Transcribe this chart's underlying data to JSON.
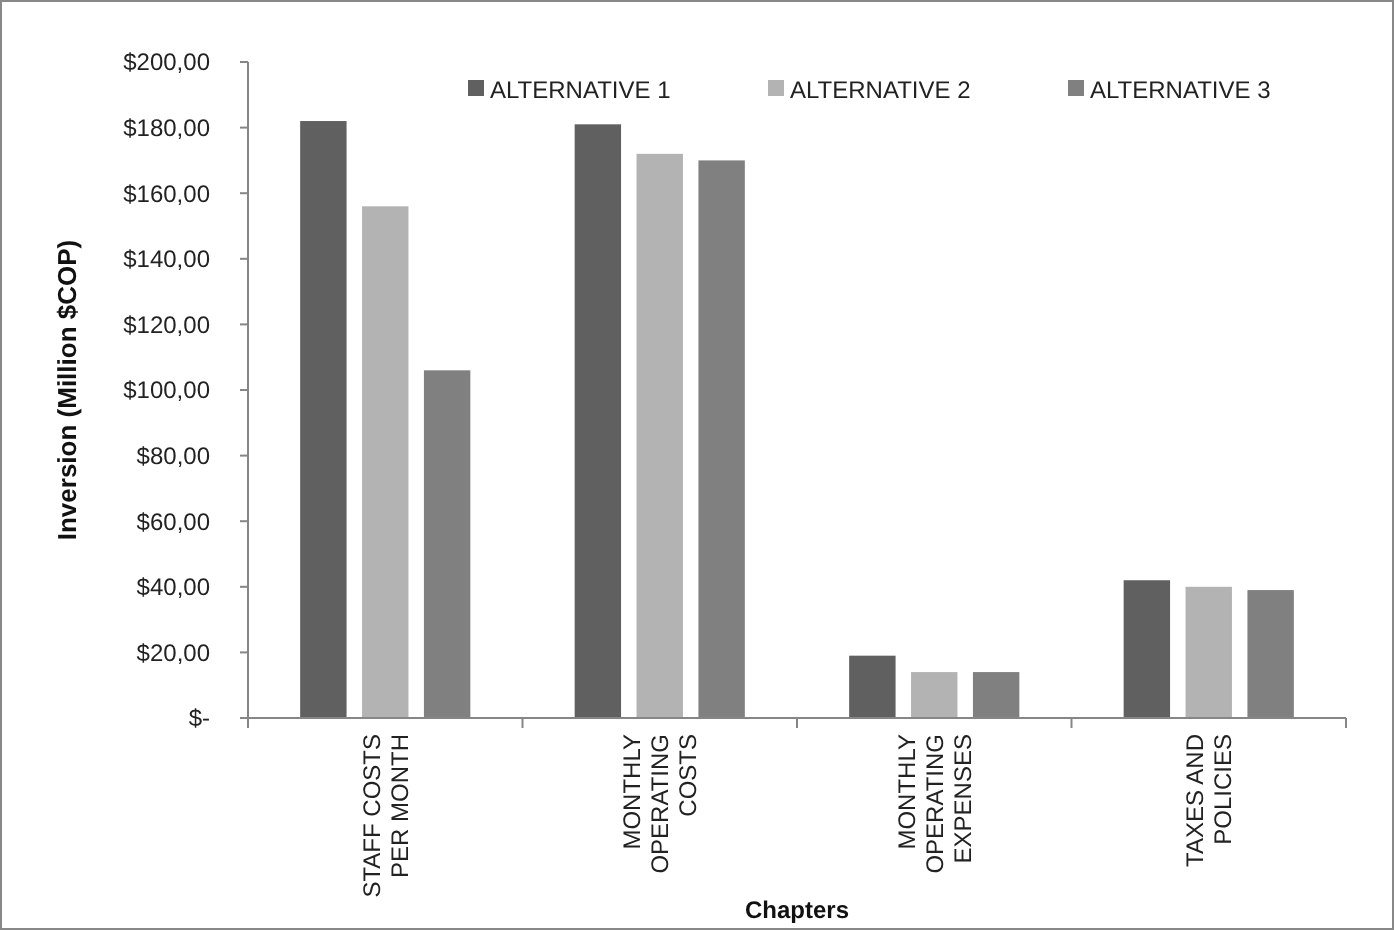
{
  "chart_data": {
    "type": "bar",
    "xlabel": "Chapters",
    "ylabel": "Inversion (Million $COP)",
    "categories": [
      "STAFF COSTS PER MONTH",
      "MONTHLY OPERATING COSTS",
      "MONTHLY OPERATING EXPENSES",
      "TAXES AND POLICIES"
    ],
    "series": [
      {
        "name": "ALTERNATIVE 1",
        "color": "#606060",
        "values": [
          182,
          181,
          19,
          42
        ]
      },
      {
        "name": "ALTERNATIVE 2",
        "color": "#b3b3b3",
        "values": [
          156,
          172,
          14,
          40
        ]
      },
      {
        "name": "ALTERNATIVE 3",
        "color": "#808080",
        "values": [
          106,
          170,
          14,
          39
        ]
      }
    ],
    "ylim": [
      0,
      200
    ],
    "yticks": [
      {
        "value": 0,
        "label": "$-"
      },
      {
        "value": 20,
        "label": "$20,00"
      },
      {
        "value": 40,
        "label": "$40,00"
      },
      {
        "value": 60,
        "label": "$60,00"
      },
      {
        "value": 80,
        "label": "$80,00"
      },
      {
        "value": 100,
        "label": "$100,00"
      },
      {
        "value": 120,
        "label": "$120,00"
      },
      {
        "value": 140,
        "label": "$140,00"
      },
      {
        "value": 160,
        "label": "$160,00"
      },
      {
        "value": 180,
        "label": "$180,00"
      },
      {
        "value": 200,
        "label": "$200,00"
      }
    ],
    "grid": false,
    "legend": "top"
  }
}
